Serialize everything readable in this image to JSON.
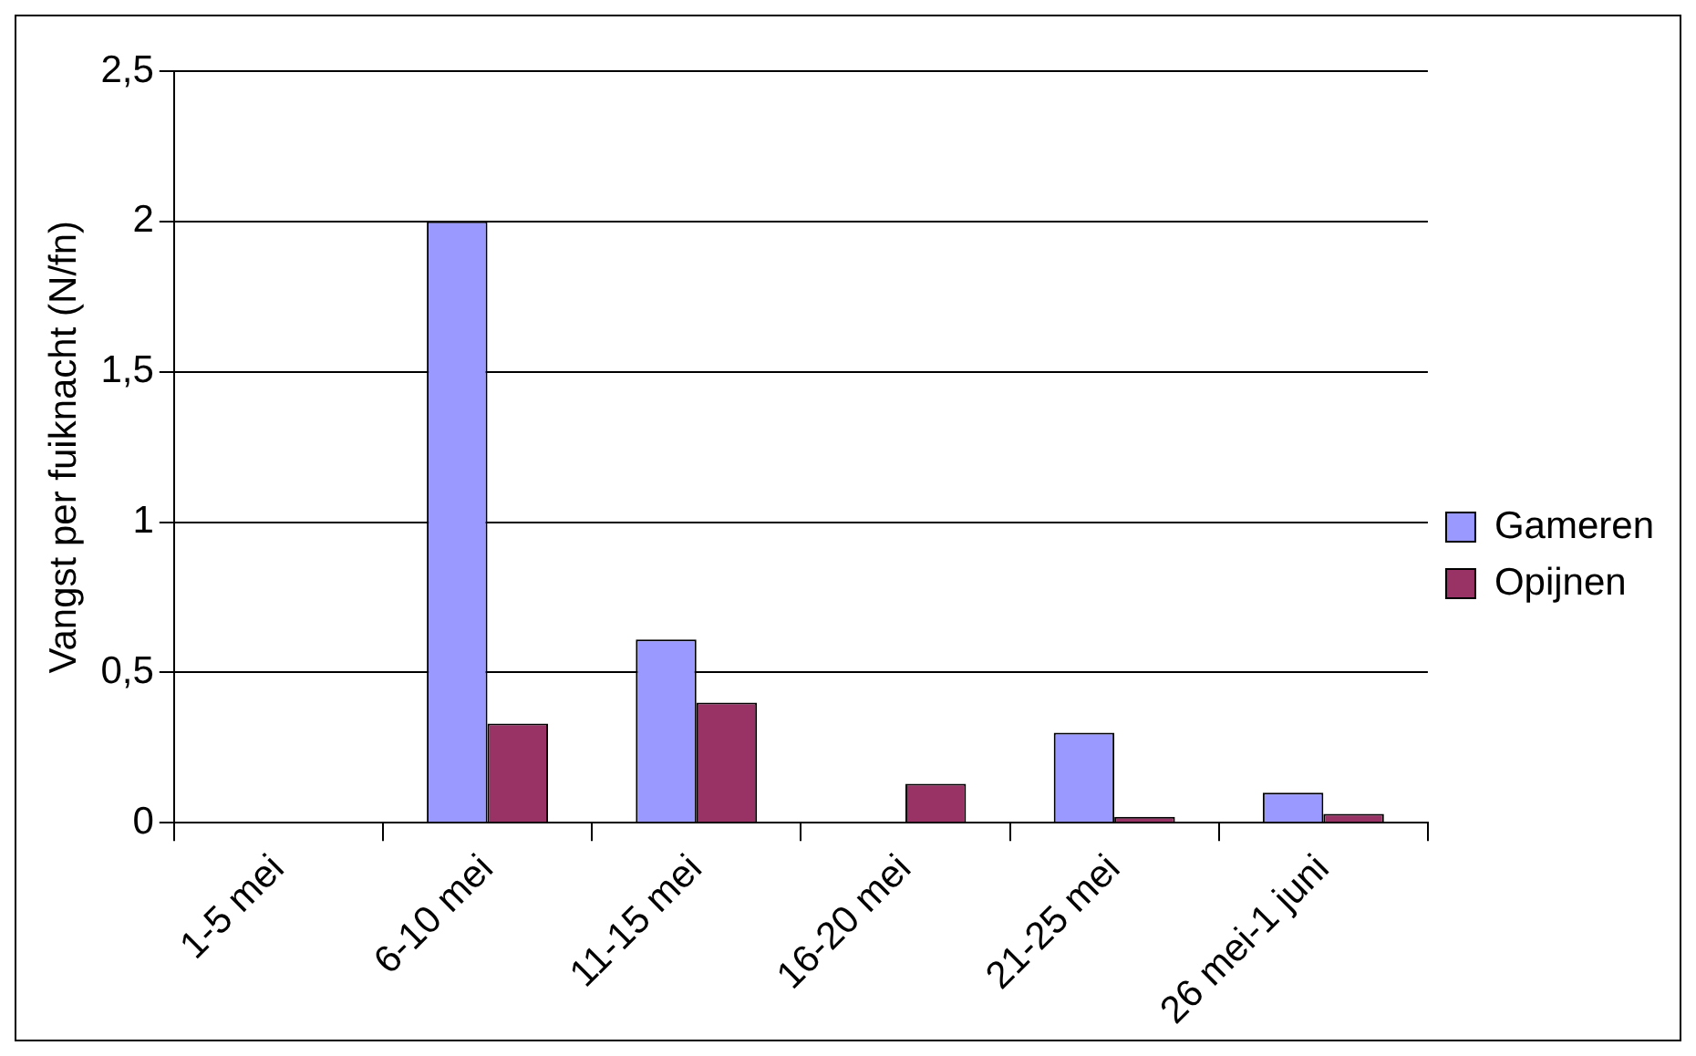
{
  "chart_data": {
    "type": "bar",
    "ylabel": "Vangst per fuiknacht (N/fn)",
    "categories": [
      "1-5 mei",
      "6-10 mei",
      "11-15 mei",
      "16-20 mei",
      "21-25 mei",
      "26 mei-1 juni"
    ],
    "series": [
      {
        "name": "Gameren",
        "color": "#9999ff",
        "values": [
          0,
          2,
          0.61,
          0,
          0.3,
          0.1
        ]
      },
      {
        "name": "Opijnen",
        "color": "#993366",
        "values": [
          0,
          0.33,
          0.4,
          0.13,
          0.02,
          0.03
        ]
      }
    ],
    "ylim": [
      0,
      2.5
    ],
    "yticks": [
      {
        "value": 0,
        "label": "0"
      },
      {
        "value": 0.5,
        "label": "0,5"
      },
      {
        "value": 1,
        "label": "1"
      },
      {
        "value": 1.5,
        "label": "1,5"
      },
      {
        "value": 2,
        "label": "2"
      },
      {
        "value": 2.5,
        "label": "2,5"
      }
    ],
    "grid": "y",
    "legend": "right"
  }
}
